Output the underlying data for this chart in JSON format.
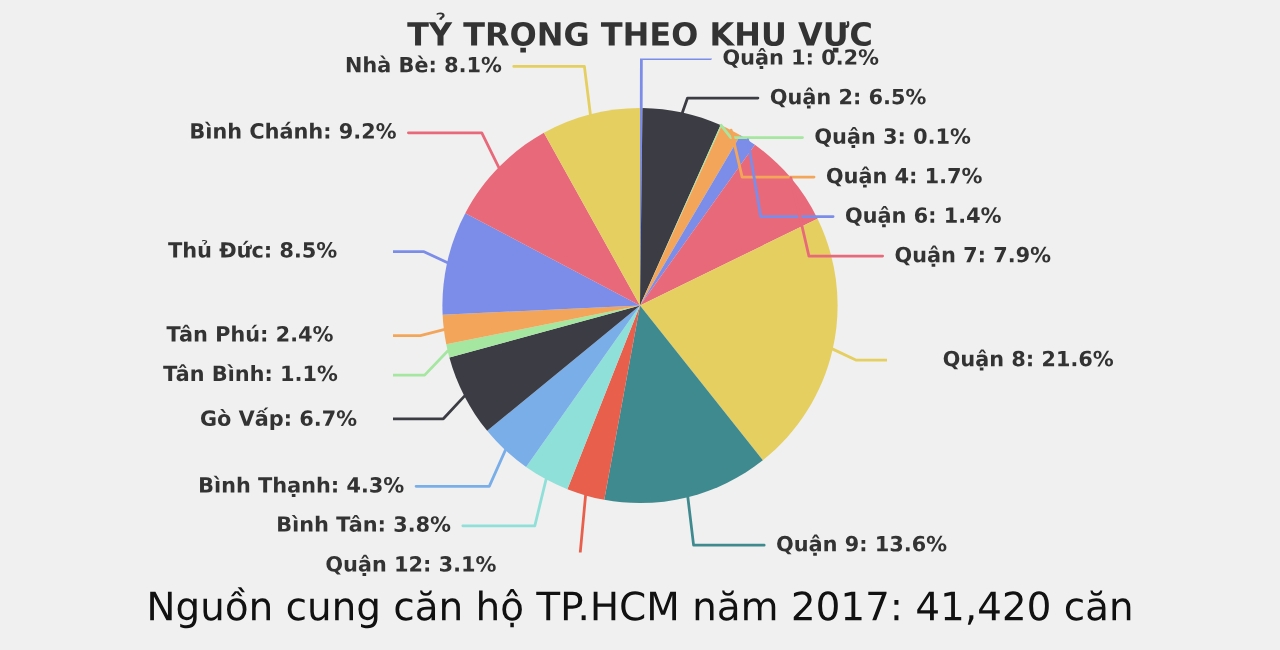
{
  "chart_data": {
    "type": "pie",
    "title": "TỶ TRỌNG THEO KHU VỰC",
    "categories": [
      "Quận 1",
      "Quận 2",
      "Quận 3",
      "Quận 4",
      "Quận 6",
      "Quận 7",
      "Quận 8",
      "Quận 9",
      "Quận 12",
      "Bình Tân",
      "Bình Thạnh",
      "Gò Vấp",
      "Tân Bình",
      "Tân Phú",
      "Thủ Đức",
      "Bình Chánh",
      "Nhà Bè"
    ],
    "values": [
      0.2,
      6.5,
      0.1,
      1.7,
      1.4,
      7.9,
      21.6,
      13.6,
      3.1,
      3.8,
      4.3,
      6.7,
      1.1,
      2.4,
      8.5,
      9.2,
      8.1
    ],
    "value_labels": [
      "0.2%",
      "6.5%",
      "0.1%",
      "1.7%",
      "1.4%",
      "7.9%",
      "21.6%",
      "13.6%",
      "3.1%",
      "3.8%",
      "4.3%",
      "6.7%",
      "1.1%",
      "2.4%",
      "8.5%",
      "9.2%",
      "8.1%"
    ],
    "colors": [
      "#7b8de8",
      "#3c3c44",
      "#a5e6a0",
      "#f3a65a",
      "#7b8de8",
      "#e8697a",
      "#e4cf60",
      "#3e8a8f",
      "#e8604c",
      "#8fe0d8",
      "#7aaee8",
      "#3c3c44",
      "#a5e6a0",
      "#f3a65a",
      "#7b8de8",
      "#e8697a",
      "#e4cf60"
    ],
    "annotations": [
      "Nguồn cung căn hộ TP.HCM năm 2017: 41,420 căn"
    ]
  }
}
